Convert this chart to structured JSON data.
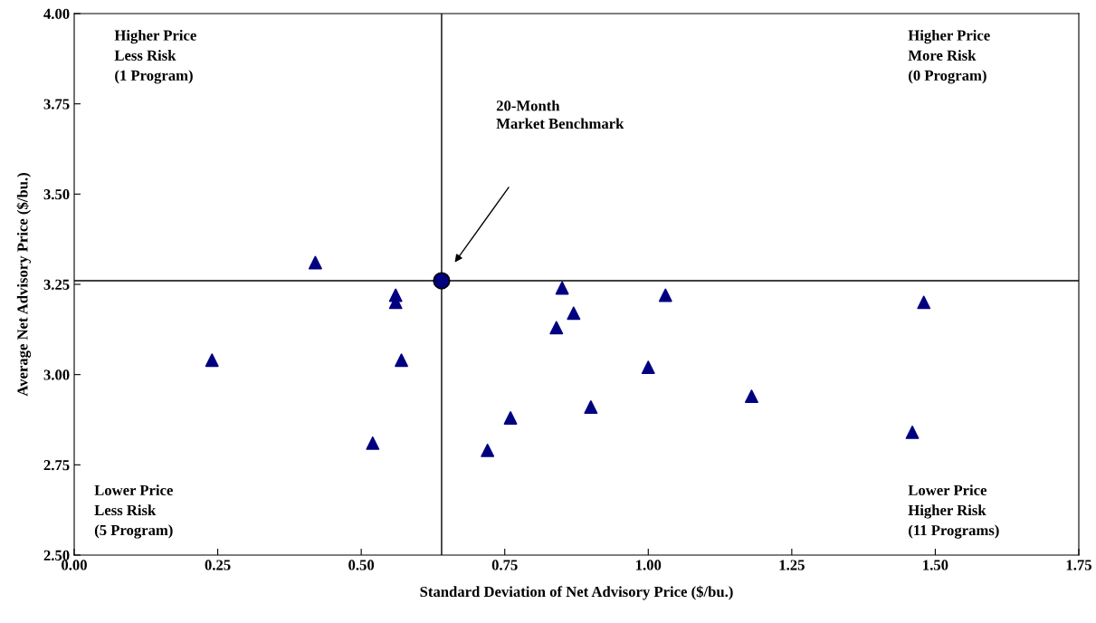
{
  "chart_data": {
    "type": "scatter",
    "xlabel": "Standard Deviation of Net Advisory Price ($/bu.)",
    "ylabel": "Average Net Advisory Price ($/bu.)",
    "xlim": [
      0,
      1.75
    ],
    "xticks": [
      {
        "value": 0,
        "label": "0.00"
      },
      {
        "value": 0.25,
        "label": "0.25"
      },
      {
        "value": 0.5,
        "label": "0.50"
      },
      {
        "value": 0.75,
        "label": "0.75"
      },
      {
        "value": 1,
        "label": "1.00"
      },
      {
        "value": 1.25,
        "label": "1.25"
      },
      {
        "value": 1.5,
        "label": "1.50"
      },
      {
        "value": 1.75,
        "label": "1.75"
      }
    ],
    "ylim": [
      2.5,
      4
    ],
    "yticks": [
      {
        "value": 2.5,
        "label": "2.50"
      },
      {
        "value": 2.75,
        "label": "2.75"
      },
      {
        "value": 3,
        "label": "3.00"
      },
      {
        "value": 3.25,
        "label": "3.25"
      },
      {
        "value": 3.5,
        "label": "3.50"
      },
      {
        "value": 3.75,
        "label": "3.75"
      },
      {
        "value": 4,
        "label": "4.00"
      }
    ],
    "grid": false,
    "legend": false,
    "series": [
      {
        "color": "#000080",
        "marker": "triangle",
        "x": [
          0.42,
          0.24,
          0.56,
          0.56,
          0.57,
          0.52,
          0.72,
          0.76,
          0.84,
          0.85,
          0.87,
          0.9,
          1.0,
          1.03,
          1.18,
          1.46,
          1.48
        ],
        "values": [
          3.31,
          3.04,
          3.22,
          3.2,
          3.04,
          2.81,
          2.79,
          2.88,
          3.13,
          3.24,
          3.17,
          2.91,
          3.02,
          3.22,
          2.94,
          2.84,
          3.2
        ]
      },
      {
        "color": "#000080",
        "marker": "circle",
        "x": [
          0.64
        ],
        "values": [
          3.26
        ]
      }
    ],
    "ref_lines": [
      {
        "axis": "x",
        "value": 0.64,
        "color": "#000000"
      },
      {
        "axis": "y",
        "value": 3.26,
        "color": "#000000"
      }
    ],
    "annotations": [
      "Higher Price\nLess Risk\n(1 Program)",
      "Higher Price\nMore Risk\n(0 Program)",
      "Lower Price\nLess Risk\n(5 Program)",
      "Lower Price\nHigher Risk\n(11 Programs)",
      "20-Month\nMarket Benchmark"
    ]
  }
}
